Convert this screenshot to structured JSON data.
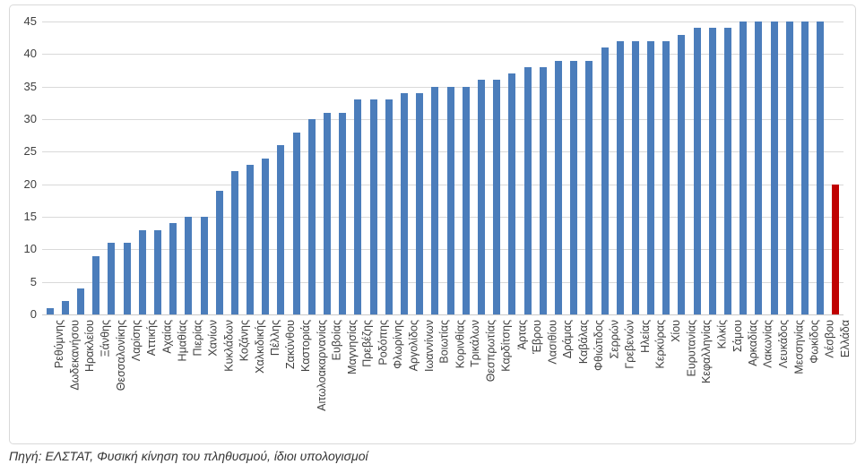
{
  "chart_data": {
    "type": "bar",
    "title": "",
    "xlabel": "",
    "ylabel": "",
    "ylim": [
      0,
      45
    ],
    "yticks": [
      0,
      5,
      10,
      15,
      20,
      25,
      30,
      35,
      40,
      45
    ],
    "grid": "horizontal",
    "legend": "none",
    "categories": [
      "Ρεθύμνης",
      "Δωδεκανήσου",
      "Ηρακλείου",
      "Ξάνθης",
      "Θεσσαλονίκης",
      "Λαρίσης",
      "Αττικής",
      "Αχαίας",
      "Ημαθίας",
      "Πιερίας",
      "Χανίων",
      "Κυκλάδων",
      "Κοζάνης",
      "Χαλκιδικής",
      "Πέλλης",
      "Ζακύνθου",
      "Καστοριάς",
      "Αιτωλοακαρνανίας",
      "Ευβοίας",
      "Μαγνησίας",
      "Πρεβέζης",
      "Ροδόπης",
      "Φλωρίνης",
      "Αργολίδος",
      "Ιωαννίνων",
      "Βοιωτίας",
      "Κορινθίας",
      "Τρικάλων",
      "Θεσπρωτίας",
      "Καρδίτσης",
      "Άρτας",
      "Έβρου",
      "Λασιθίου",
      "Δράμας",
      "Καβάλας",
      "Φθιώτιδος",
      "Σερρών",
      "Γρεβενών",
      "Ηλείας",
      "Κερκύρας",
      "Χίου",
      "Ευρυτανίας",
      "Κεφαλληνίας",
      "Κιλκίς",
      "Σάμου",
      "Αρκαδίας",
      "Λακωνίας",
      "Λευκάδος",
      "Μεσσηνίας",
      "Φωκίδος",
      "Λέσβου",
      "Ελλάδα"
    ],
    "values": [
      1,
      2,
      4,
      9,
      11,
      11,
      13,
      13,
      14,
      15,
      15,
      19,
      22,
      23,
      24,
      26,
      28,
      30,
      31,
      31,
      33,
      33,
      33,
      34,
      34,
      35,
      35,
      35,
      36,
      36,
      37,
      38,
      38,
      39,
      39,
      39,
      41,
      42,
      42,
      42,
      42,
      43,
      44,
      44,
      44,
      45,
      45,
      45,
      45,
      45,
      45,
      20
    ],
    "highlight_category": "Ελλάδα",
    "colors": {
      "bar_default": "#4b7dbb",
      "bar_highlight": "#c00000",
      "gridline": "#d9d9d9",
      "axis_text": "#404040"
    }
  },
  "source_note": "Πηγή: ΕΛΣΤΑΤ, Φυσική κίνηση του πληθυσμού, ίδιοι υπολογισμοί"
}
